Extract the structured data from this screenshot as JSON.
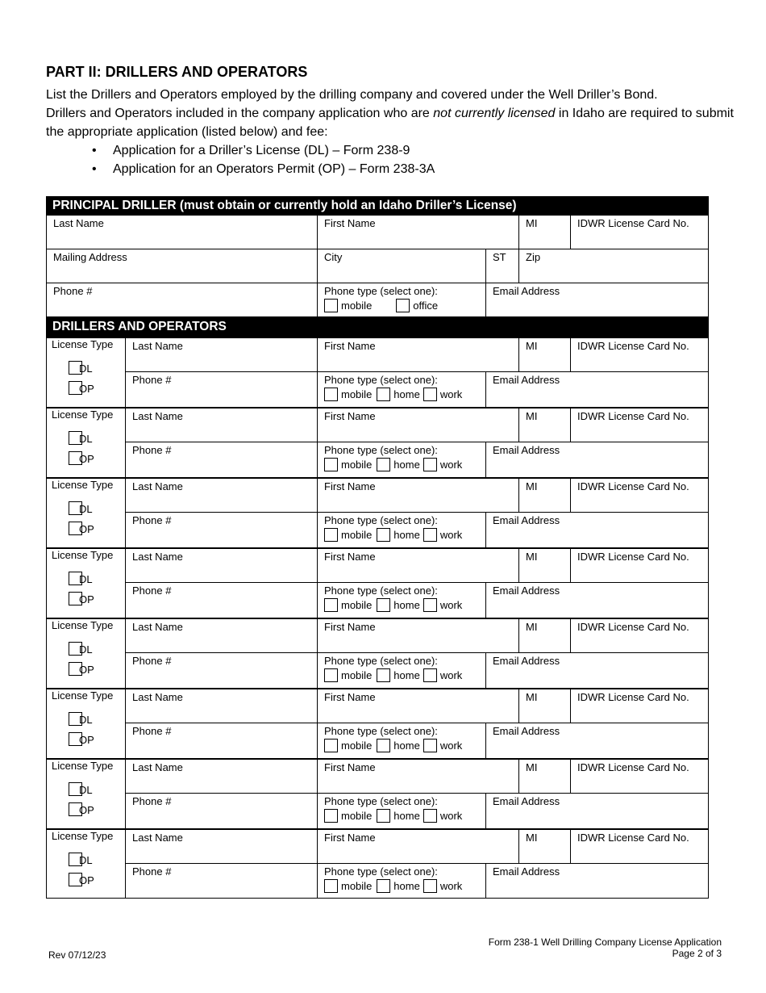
{
  "heading": "PART II: DRILLERS AND OPERATORS",
  "intro": {
    "line1": "List the Drillers and Operators employed by the drilling company and covered under the Well Driller’s Bond.",
    "line2_pre": "Drillers and Operators included in the company application who are ",
    "line2_em": "not currently licensed",
    "line2_post": " in Idaho are required to submit the appropriate application (listed below) and fee:",
    "bullets": [
      "Application for a Driller’s License (DL) – Form 238-9",
      "Application for an Operators Permit (OP) – Form 238-3A"
    ]
  },
  "principal": {
    "header": "PRINCIPAL DRILLER (must obtain or currently hold an Idaho Driller’s License)",
    "last_name": "Last Name",
    "first_name": "First Name",
    "mi": "MI",
    "license_no": "IDWR License Card No.",
    "mailing": "Mailing Address",
    "city": "City",
    "st": "ST",
    "zip": "Zip",
    "phone": "Phone #",
    "phone_type": "Phone type (select one):",
    "opt_mobile": "mobile",
    "opt_office": "office",
    "email": "Email Address"
  },
  "drillers": {
    "header": "DRILLERS AND OPERATORS",
    "labels": {
      "license_type": "License Type",
      "dl": "DL",
      "op": "OP",
      "last_name": "Last Name",
      "first_name": "First Name",
      "mi": "MI",
      "license_no": "IDWR License Card No.",
      "phone": "Phone #",
      "phone_type": "Phone type (select one):",
      "mobile": "mobile",
      "home": "home",
      "work": "work",
      "email": "Email Address"
    },
    "rows": [
      {},
      {},
      {},
      {},
      {},
      {},
      {},
      {}
    ]
  },
  "footer": {
    "rev": "Rev 07/12/23",
    "form": "Form 238-1 Well Drilling Company License Application",
    "page": "Page 2 of 3"
  }
}
